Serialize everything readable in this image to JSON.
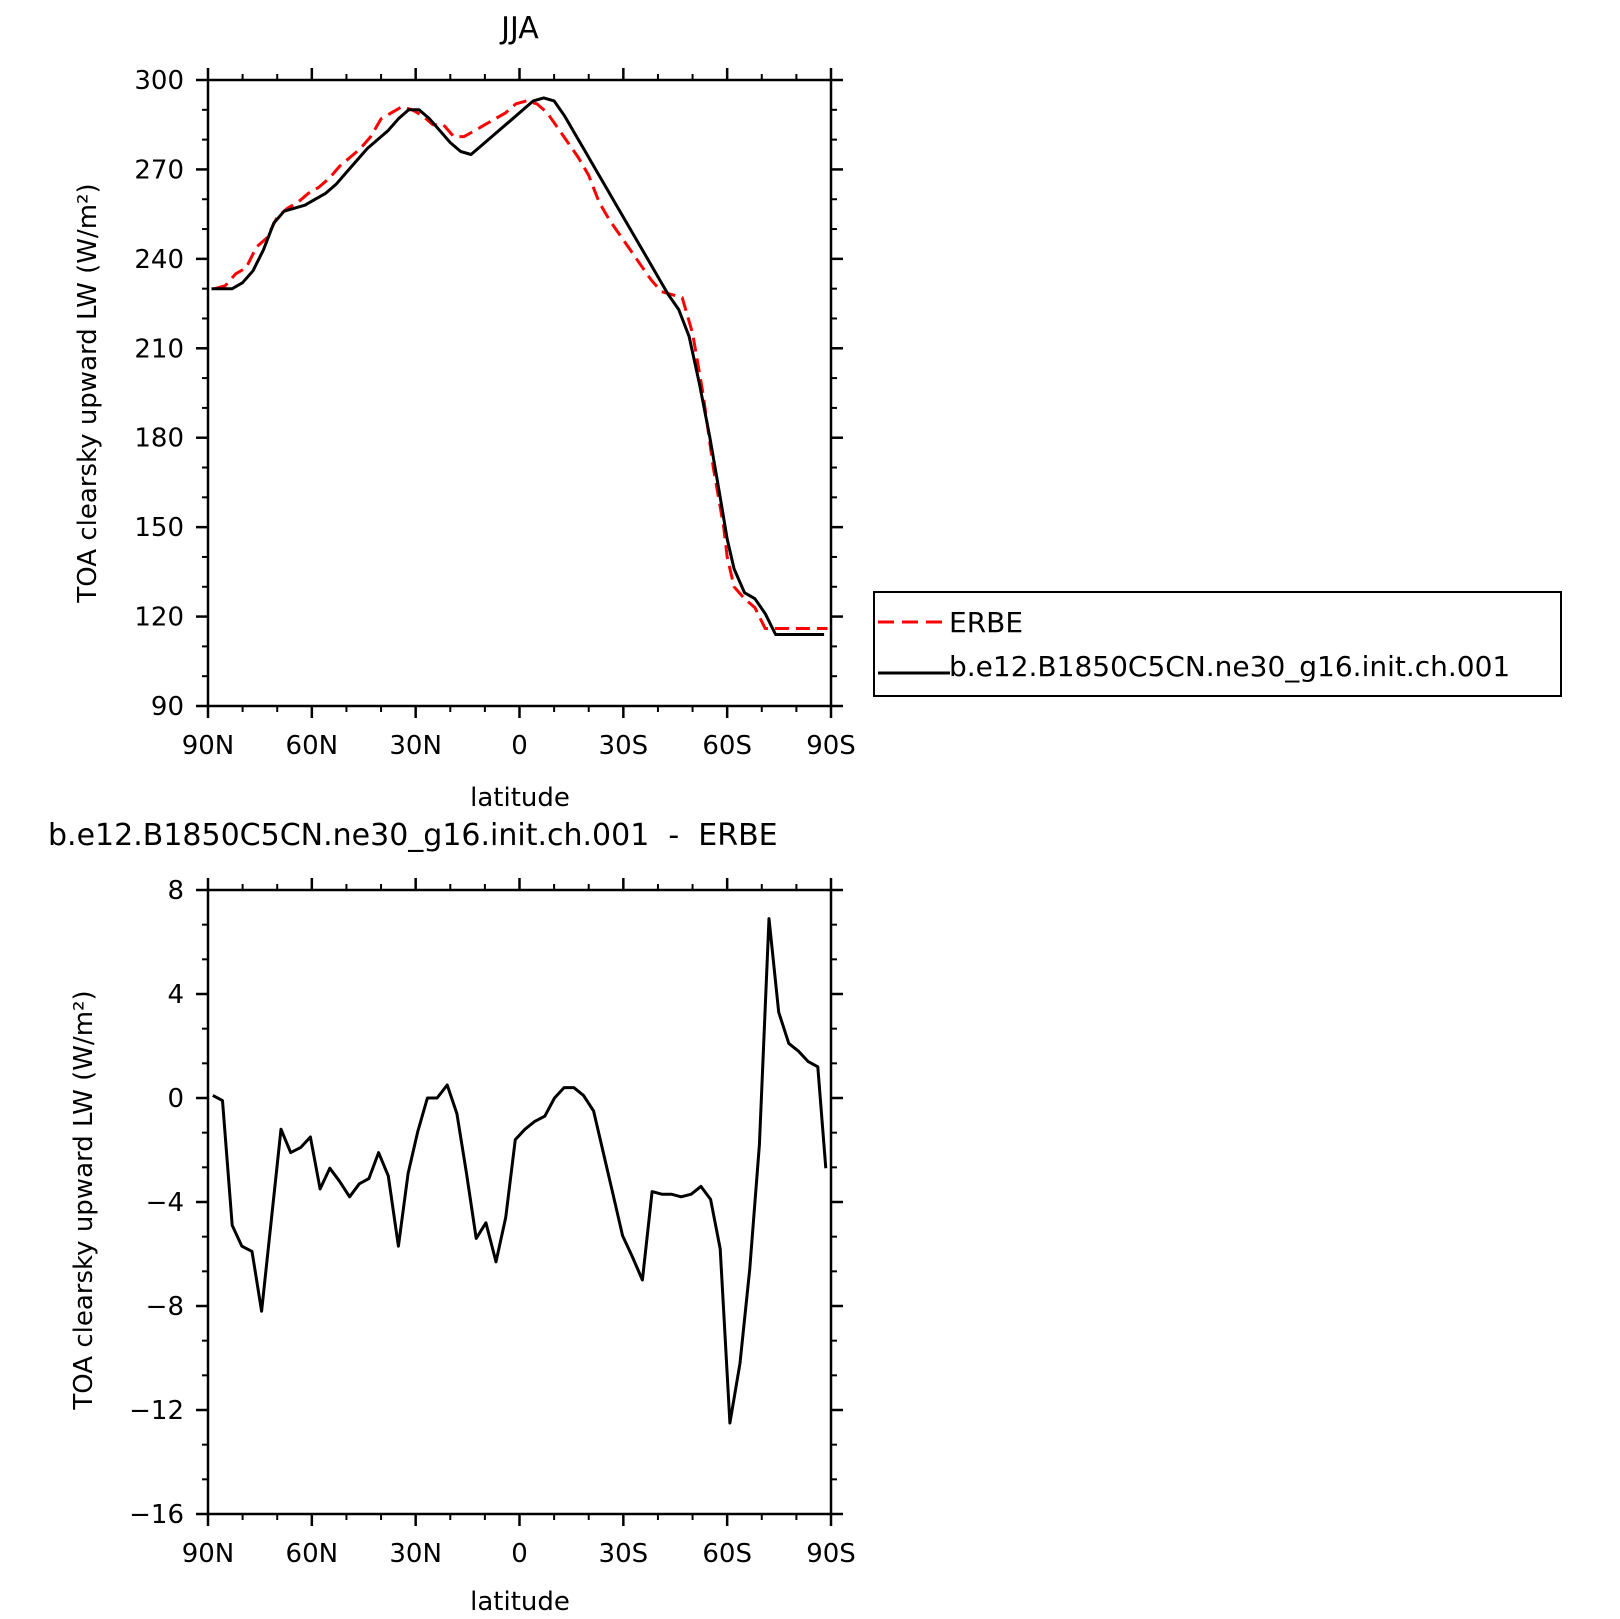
{
  "chart_data": [
    {
      "type": "line",
      "title": "JJA",
      "xlabel": "latitude",
      "ylabel": "TOA clearsky upward LW (W/m²)",
      "xlim": [
        -90,
        90
      ],
      "ylim": [
        90,
        300
      ],
      "x_ticks": [
        -90,
        -60,
        -30,
        0,
        30,
        60,
        90
      ],
      "x_tick_labels": [
        "90N",
        "60N",
        "30N",
        "0",
        "30S",
        "60S",
        "90S"
      ],
      "y_ticks": [
        90,
        120,
        150,
        180,
        210,
        240,
        270,
        300
      ],
      "y_tick_labels": [
        "90",
        "120",
        "150",
        "180",
        "210",
        "240",
        "270",
        "300"
      ],
      "legend": "right",
      "series": [
        {
          "name": "ERBE",
          "color": "#ff0000",
          "dash": "dashed",
          "x": [
            -88,
            -85,
            -82,
            -79,
            -76,
            -73,
            -70,
            -67,
            -64,
            -61,
            -58,
            -55,
            -52,
            -49,
            -46,
            -43,
            -40,
            -37,
            -34,
            -31,
            -28,
            -25,
            -22,
            -19,
            -16,
            -13,
            -10,
            -7,
            -4,
            -1,
            2,
            5,
            8,
            11,
            14,
            17,
            20,
            23,
            26,
            29,
            32,
            35,
            38,
            41,
            44,
            47,
            50,
            53,
            56,
            59,
            60,
            62,
            65,
            68,
            71,
            74,
            77,
            80,
            83,
            86,
            89
          ],
          "y": [
            230,
            231,
            235,
            237,
            244,
            247,
            254,
            257,
            259,
            262,
            264,
            267,
            271,
            274,
            277,
            281,
            287,
            289,
            291,
            290,
            288,
            285,
            285,
            281,
            281,
            283,
            285,
            287,
            289,
            292,
            293,
            292,
            289,
            284,
            279,
            274,
            268,
            259,
            253,
            248,
            243,
            238,
            233,
            229,
            228,
            227,
            215,
            195,
            170,
            150,
            140,
            130,
            126,
            123,
            116,
            116,
            116,
            116,
            116,
            116,
            116
          ]
        },
        {
          "name": "b.e12.B1850C5CN.ne30_g16.init.ch.001",
          "color": "#000000",
          "dash": "solid",
          "x": [
            -89,
            -86,
            -83,
            -80,
            -77,
            -74,
            -71,
            -68,
            -65,
            -62,
            -59,
            -56,
            -53,
            -50,
            -47,
            -44,
            -41,
            -38,
            -35,
            -32,
            -29,
            -26,
            -23,
            -20,
            -17,
            -14,
            -11,
            -8,
            -5,
            -2,
            1,
            4,
            7,
            10,
            13,
            16,
            19,
            22,
            25,
            28,
            31,
            34,
            37,
            40,
            43,
            46,
            49,
            52,
            55,
            58,
            60,
            62,
            65,
            68,
            71,
            74,
            77,
            80,
            83,
            86,
            88
          ],
          "y": [
            230,
            230,
            230,
            232,
            236,
            243,
            252,
            256,
            257,
            258,
            260,
            262,
            265,
            269,
            273,
            277,
            280,
            283,
            287,
            290,
            290,
            287,
            283,
            279,
            276,
            275,
            278,
            281,
            284,
            287,
            290,
            293,
            294,
            293,
            288,
            282,
            276,
            270,
            264,
            258,
            252,
            246,
            240,
            234,
            228,
            223,
            214,
            198,
            180,
            160,
            146,
            136,
            128,
            126,
            121,
            114,
            114,
            114,
            114,
            114,
            114
          ]
        }
      ]
    },
    {
      "type": "line",
      "title": "b.e12.B1850C5CN.ne30_g16.init.ch.001  -  ERBE",
      "xlabel": "latitude",
      "ylabel": "TOA clearsky upward LW (W/m²)",
      "xlim": [
        -90,
        90
      ],
      "ylim": [
        -16,
        8
      ],
      "x_ticks": [
        -90,
        -60,
        -30,
        0,
        30,
        60,
        90
      ],
      "x_tick_labels": [
        "90N",
        "60N",
        "30N",
        "0",
        "30S",
        "60S",
        "90S"
      ],
      "y_ticks": [
        -16,
        -12,
        -8,
        -4,
        0,
        4,
        8
      ],
      "y_tick_labels": [
        "−16",
        "−12",
        "−8",
        "−4",
        "0",
        "4",
        "8"
      ],
      "series": [
        {
          "color": "#000000",
          "dash": "solid",
          "x": [
            -88.6,
            -85.8,
            -83.0,
            -80.2,
            -77.3,
            -74.5,
            -71.7,
            -68.9,
            -66.1,
            -63.2,
            -60.4,
            -57.6,
            -54.8,
            -52.0,
            -49.1,
            -46.3,
            -43.5,
            -40.7,
            -37.9,
            -35.0,
            -32.2,
            -29.4,
            -26.6,
            -23.8,
            -20.9,
            -18.1,
            -15.3,
            -12.5,
            -9.7,
            -6.8,
            -4.0,
            -1.2,
            1.6,
            4.4,
            7.3,
            10.1,
            12.9,
            15.7,
            18.5,
            21.4,
            24.2,
            27.0,
            29.8,
            32.6,
            35.5,
            38.3,
            41.1,
            43.9,
            46.7,
            49.6,
            52.4,
            55.2,
            58.0,
            60.8,
            63.7,
            66.5,
            69.3,
            72.1,
            74.9,
            77.8,
            80.6,
            83.4,
            86.2,
            88.5
          ],
          "y": [
            0.1,
            -0.1,
            -4.9,
            -5.7,
            -5.9,
            -8.2,
            -4.7,
            -1.2,
            -2.1,
            -1.9,
            -1.5,
            -3.5,
            -2.7,
            -3.2,
            -3.8,
            -3.3,
            -3.1,
            -2.1,
            -3.0,
            -5.7,
            -2.9,
            -1.3,
            0.0,
            0.0,
            0.5,
            -0.6,
            -2.9,
            -5.4,
            -4.8,
            -6.3,
            -4.6,
            -1.6,
            -1.2,
            -0.9,
            -0.7,
            0.0,
            0.4,
            0.4,
            0.1,
            -0.5,
            -2.1,
            -3.7,
            -5.3,
            -6.1,
            -7.0,
            -3.6,
            -3.7,
            -3.7,
            -3.8,
            -3.7,
            -3.4,
            -3.9,
            -5.8,
            -12.5,
            -10.2,
            -6.6,
            -1.8,
            6.9,
            3.3,
            2.1,
            1.8,
            1.4,
            1.2,
            -2.7
          ]
        }
      ]
    }
  ]
}
